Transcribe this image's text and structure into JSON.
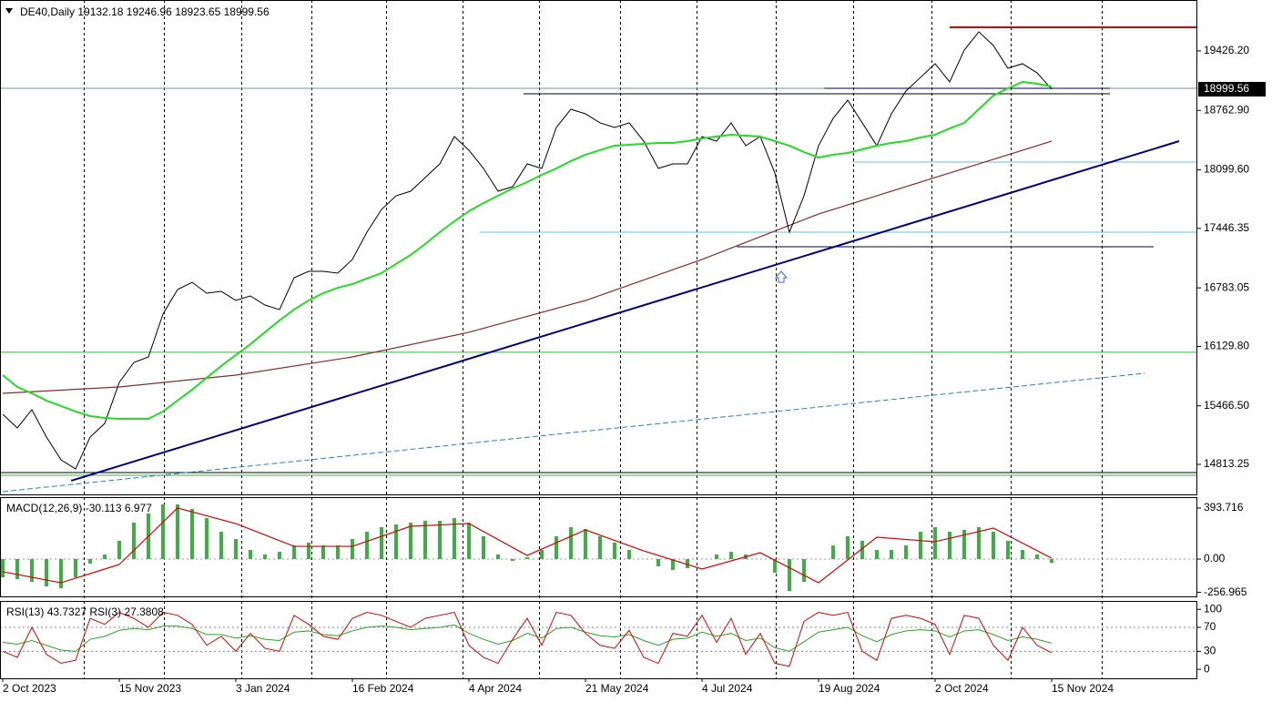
{
  "chart_data": [
    {
      "type": "line",
      "title": "DE40,Daily",
      "ohlc": [
        19132.18,
        19246.96,
        18923.65,
        18999.56
      ],
      "categories": [
        "2 Oct 2023",
        null,
        null,
        null,
        null,
        null,
        null,
        null,
        "15 Nov 2023",
        null,
        null,
        null,
        null,
        null,
        null,
        null,
        "3 Jan 2024",
        null,
        null,
        null,
        null,
        null,
        null,
        null,
        "16 Feb 2024",
        null,
        null,
        null,
        null,
        null,
        null,
        null,
        "4 Apr 2024",
        null,
        null,
        null,
        null,
        null,
        null,
        null,
        "21 May 2024",
        null,
        null,
        null,
        null,
        null,
        null,
        null,
        "4 Jul 2024",
        null,
        null,
        null,
        null,
        null,
        null,
        null,
        "19 Aug 2024",
        null,
        null,
        null,
        null,
        null,
        null,
        null,
        "2 Oct 2024",
        null,
        null,
        null,
        null,
        null,
        null,
        null,
        "15 Nov 2024"
      ],
      "series": [
        {
          "color": "#000000",
          "values": [
            15372,
            15220,
            15423,
            15118,
            14864,
            14762,
            15118,
            15270,
            15728,
            15950,
            16012,
            16490,
            16764,
            16845,
            16723,
            16744,
            16642,
            16693,
            16591,
            16540,
            16896,
            16967,
            16967,
            16947,
            17100,
            17404,
            17658,
            17810,
            17861,
            18014,
            18166,
            18471,
            18319,
            18115,
            17861,
            17912,
            18166,
            18115,
            18573,
            18776,
            18725,
            18624,
            18573,
            18624,
            18420,
            18115,
            18166,
            18166,
            18471,
            18420,
            18624,
            18369,
            18471,
            18064,
            17404,
            17810,
            18369,
            18674,
            18877,
            18624,
            18369,
            18725,
            18979,
            19132,
            19284,
            19081,
            19436,
            19640,
            19487,
            19233,
            19284,
            19182,
            18999.56
          ]
        },
        {
          "color": "#22dd22",
          "values": [
            15809,
            15677,
            15606,
            15525,
            15464,
            15403,
            15352,
            15332,
            15321,
            15321,
            15321,
            15403,
            15525,
            15646,
            15779,
            15911,
            16033,
            16154,
            16287,
            16419,
            16541,
            16642,
            16723,
            16784,
            16825,
            16886,
            16947,
            17049,
            17150,
            17272,
            17404,
            17526,
            17638,
            17729,
            17811,
            17892,
            17963,
            18044,
            18115,
            18197,
            18268,
            18319,
            18369,
            18379,
            18390,
            18400,
            18400,
            18420,
            18451,
            18471,
            18491,
            18481,
            18471,
            18420,
            18369,
            18298,
            18237,
            18268,
            18288,
            18329,
            18369,
            18400,
            18420,
            18461,
            18491,
            18562,
            18623,
            18776,
            18928,
            19009,
            19081,
            19060,
            19030
          ]
        }
      ],
      "overlays": [
        {
          "color": "#8b2a2a",
          "x": [
            0,
            8,
            16,
            24,
            32,
            40,
            48,
            56,
            64,
            72
          ],
          "values": [
            15606,
            15677,
            15809,
            16012,
            16287,
            16642,
            17100,
            17607,
            18014,
            18420
          ]
        }
      ],
      "levels": [
        {
          "value": 19690,
          "x": [
            65,
            82
          ],
          "color": "#dd0000",
          "width": 2
        },
        {
          "value": 19010,
          "x": [
            -0.2,
            82
          ],
          "color": "#7a8fa6",
          "width": 1
        },
        {
          "value": 18949,
          "x": [
            35.75,
            76
          ],
          "color": "#000000",
          "width": 1
        },
        {
          "value": 19010,
          "x": [
            56.4,
            76
          ],
          "color": "#000060",
          "width": 1
        },
        {
          "value": 18187,
          "x": [
            58.3,
            82
          ],
          "color": "#66c0e0",
          "width": 1
        },
        {
          "value": 17404,
          "x": [
            32.75,
            82
          ],
          "color": "#66c0e0",
          "width": 1
        },
        {
          "value": 17242,
          "x": [
            50.4,
            79
          ],
          "color": "#000040",
          "width": 1
        },
        {
          "value": 16064,
          "x": [
            -0.2,
            82
          ],
          "color": "#33bb33",
          "width": 1
        },
        {
          "value": 14722,
          "x": [
            -0.2,
            82
          ],
          "color": "#000000",
          "width": 1
        },
        {
          "value": 14691,
          "x": [
            -0.2,
            82
          ],
          "color": "#33bb33",
          "width": 1
        }
      ],
      "trendlines": [
        {
          "x": [
            4.7,
            80.75
          ],
          "values": [
            14631,
            18420
          ],
          "color": "#000080",
          "width": 2,
          "style": "solid"
        },
        {
          "x": [
            0,
            78.4
          ],
          "values": [
            14509,
            15830
          ],
          "color": "#2a7fd0",
          "width": 1,
          "style": "dashed"
        }
      ],
      "ylim": [
        14478,
        19995
      ],
      "yticks": [
        {
          "value": 19426.2,
          "label": "19426.20"
        },
        {
          "value": 18762.9,
          "label": "18762.90"
        },
        {
          "value": 18099.6,
          "label": "18099.60"
        },
        17446.35,
        16783.05,
        {
          "value": 16129.8,
          "label": "16129.80"
        },
        {
          "value": 15466.5,
          "label": "15466.50"
        },
        14813.25
      ]
    },
    {
      "type": "bar",
      "title": "MACD(12,26,9)",
      "current": [
        -30.113,
        6.977
      ],
      "color": "#3cb043",
      "values": [
        -141,
        -155,
        -176,
        -211,
        -225,
        -141,
        -35,
        35,
        141,
        281,
        352,
        422,
        422,
        387,
        316,
        211,
        155,
        70,
        35,
        56,
        105,
        127,
        105,
        105,
        155,
        211,
        246,
        267,
        281,
        295,
        295,
        316,
        281,
        176,
        35,
        -14,
        14,
        70,
        176,
        246,
        232,
        176,
        127,
        70,
        0,
        -56,
        -84,
        -70,
        0,
        35,
        56,
        35,
        0,
        -105,
        -246,
        -176,
        0,
        105,
        176,
        141,
        70,
        70,
        105,
        211,
        246,
        211,
        225,
        246,
        211,
        141,
        70,
        35,
        -30.113
      ],
      "overlays": [
        {
          "color": "#dd0000",
          "x": [
            0,
            4,
            8,
            12,
            16,
            20,
            24,
            28,
            32,
            36,
            40,
            44,
            48,
            52,
            56,
            60,
            64,
            68,
            72
          ],
          "values": [
            -98,
            -183,
            -42,
            394,
            274,
            98,
            98,
            253,
            274,
            28,
            225,
            63,
            -77,
            49,
            -183,
            169,
            134,
            239,
            6.977
          ]
        }
      ],
      "ylim": [
        -288,
        478
      ],
      "yticks": [
        393.716,
        {
          "value": 0,
          "label": "0.00"
        },
        -256.965
      ]
    },
    {
      "type": "line",
      "title": "RSI(13)",
      "current": 43.7327,
      "title2": "RSI(3)",
      "current2": 27.3808,
      "series": [
        {
          "color": "#22aa22",
          "values": [
            45,
            42,
            48,
            40,
            32,
            30,
            50,
            55,
            65,
            68,
            66,
            72,
            72,
            68,
            58,
            58,
            52,
            56,
            50,
            48,
            62,
            64,
            58,
            56,
            64,
            70,
            72,
            70,
            66,
            68,
            70,
            74,
            60,
            50,
            42,
            48,
            60,
            52,
            68,
            70,
            62,
            56,
            54,
            58,
            48,
            40,
            50,
            52,
            62,
            55,
            60,
            48,
            52,
            36,
            30,
            46,
            62,
            66,
            70,
            56,
            46,
            58,
            64,
            66,
            64,
            54,
            64,
            66,
            58,
            48,
            54,
            50,
            43.7327
          ]
        },
        {
          "color": "#dd0000",
          "values": [
            30,
            20,
            70,
            25,
            10,
            15,
            85,
            75,
            95,
            85,
            70,
            95,
            90,
            75,
            40,
            55,
            30,
            60,
            35,
            30,
            90,
            75,
            55,
            50,
            85,
            95,
            90,
            80,
            70,
            85,
            90,
            95,
            40,
            20,
            10,
            50,
            85,
            40,
            95,
            90,
            60,
            40,
            35,
            65,
            20,
            10,
            60,
            55,
            90,
            45,
            85,
            25,
            60,
            10,
            5,
            80,
            95,
            90,
            95,
            30,
            15,
            85,
            90,
            85,
            75,
            25,
            90,
            85,
            40,
            15,
            70,
            40,
            27.3808
          ]
        }
      ],
      "levels": [
        70,
        30
      ],
      "ylim": [
        -15,
        114
      ],
      "yticks": [
        100,
        70,
        30,
        0
      ]
    }
  ]
}
